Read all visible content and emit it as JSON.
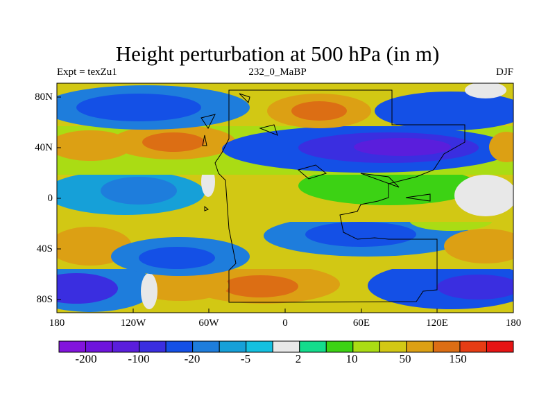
{
  "title": "Height perturbation at 500 hPa (in m)",
  "subtitle_left": "Expt = texZu1",
  "subtitle_center": "232_0_MaBP",
  "subtitle_right": "DJF",
  "lon_labels": [
    "180",
    "120W",
    "60W",
    "0",
    "60E",
    "120E",
    "180"
  ],
  "lat_labels": [
    "80N",
    "40N",
    "0",
    "40S",
    "80S"
  ],
  "colorbar": {
    "colors": [
      "#8214dc",
      "#6e14dc",
      "#5a1edc",
      "#3a2ee0",
      "#1450e6",
      "#1e7ddc",
      "#16a0d8",
      "#14c0e0",
      "#e8e8e8",
      "#14dc8c",
      "#3cd214",
      "#aadc14",
      "#d2c814",
      "#dca014",
      "#dc6e14",
      "#e63c14",
      "#e61414"
    ],
    "labels": [
      "-200",
      "-100",
      "-20",
      "-5",
      "2",
      "10",
      "50",
      "150"
    ]
  },
  "colors": {
    "strong_negative": "#5a1edc",
    "negative": "#1450e6",
    "weak_negative": "#16a0d8",
    "neutral": "#e8e8e8",
    "weak_positive": "#3cd214",
    "positive": "#d2c814",
    "strong_positive": "#dca014",
    "peak_positive": "#dc6e14"
  }
}
